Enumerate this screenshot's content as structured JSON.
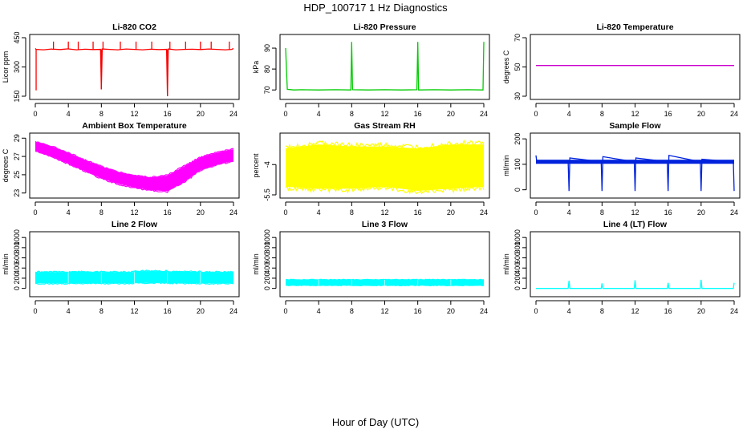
{
  "page": {
    "title": "HDP_100717  1 Hz Diagnostics",
    "xaxis_caption": "Hour of Day (UTC)"
  },
  "chart_data": [
    {
      "type": "line",
      "title": "Li-820 CO2",
      "ylabel": "Licor ppm",
      "color": "#ff0000",
      "x": [
        0,
        0.1,
        1,
        2,
        2.2,
        2.3,
        3,
        4,
        4.1,
        5,
        6,
        7,
        7.9,
        8.0,
        8.1,
        9,
        10,
        11,
        12,
        13,
        14,
        15,
        15.9,
        16.0,
        16.1,
        17,
        18,
        19,
        20,
        21,
        22,
        23,
        23.8,
        24
      ],
      "y": [
        395,
        390,
        388,
        392,
        390,
        391,
        389,
        393,
        392,
        388,
        391,
        389,
        390,
        185,
        392,
        390,
        388,
        392,
        390,
        388,
        391,
        389,
        390,
        150,
        392,
        388,
        390,
        391,
        389,
        392,
        390,
        388,
        390,
        395
      ],
      "spikes": [
        {
          "x": 0.1,
          "y": 180
        },
        {
          "x": 2.2,
          "y": 430
        },
        {
          "x": 4.0,
          "y": 430
        },
        {
          "x": 5.2,
          "y": 430
        },
        {
          "x": 7.0,
          "y": 430
        },
        {
          "x": 8.0,
          "y": 185
        },
        {
          "x": 8.2,
          "y": 430
        },
        {
          "x": 10.3,
          "y": 430
        },
        {
          "x": 12.2,
          "y": 430
        },
        {
          "x": 14.1,
          "y": 430
        },
        {
          "x": 16.0,
          "y": 150
        },
        {
          "x": 16.3,
          "y": 430
        },
        {
          "x": 18.2,
          "y": 430
        },
        {
          "x": 20.0,
          "y": 430
        },
        {
          "x": 21.3,
          "y": 430
        },
        {
          "x": 23.5,
          "y": 430
        }
      ],
      "xlim": [
        0,
        24
      ],
      "ylim": [
        150,
        450
      ],
      "xticks": [
        0,
        4,
        8,
        12,
        16,
        20,
        24
      ],
      "yticks": [
        150,
        300,
        450
      ]
    },
    {
      "type": "line",
      "title": "Li-820 Pressure",
      "ylabel": "kPa",
      "color": "#00cc00",
      "x": [
        0,
        0.1,
        0.2,
        1,
        2,
        4,
        6,
        7.9,
        8.0,
        8.1,
        10,
        12,
        14,
        15.9,
        16.0,
        16.1,
        18,
        20,
        22,
        23.9,
        24
      ],
      "y": [
        90,
        80,
        70.3,
        70.0,
        70.1,
        70.0,
        70.1,
        70.0,
        93,
        70.1,
        70.0,
        70.1,
        70.0,
        70.1,
        93,
        70.0,
        70.1,
        70.0,
        70.1,
        70.0,
        93
      ],
      "xlim": [
        0,
        24
      ],
      "ylim": [
        67,
        95
      ],
      "xticks": [
        0,
        4,
        8,
        12,
        16,
        20,
        24
      ],
      "yticks": [
        70,
        80,
        90
      ]
    },
    {
      "type": "line",
      "title": "Li-820 Temperature",
      "ylabel": "degrees C",
      "color": "#cc00cc",
      "x": [
        0,
        24
      ],
      "y": [
        51,
        51
      ],
      "xlim": [
        0,
        24
      ],
      "ylim": [
        30,
        70
      ],
      "xticks": [
        0,
        4,
        8,
        12,
        16,
        20,
        24
      ],
      "yticks": [
        30,
        50,
        70
      ]
    },
    {
      "type": "area",
      "title": "Ambient Box Temperature",
      "ylabel": "degrees C",
      "color": "#ff00ff",
      "x": [
        0,
        2,
        4,
        6,
        8,
        10,
        12,
        14,
        16,
        18,
        20,
        22,
        24
      ],
      "y_upper": [
        28.6,
        28.1,
        27.4,
        26.6,
        25.9,
        25.3,
        24.9,
        24.7,
        24.9,
        25.9,
        26.9,
        27.4,
        27.8
      ],
      "y_lower": [
        27.6,
        27.0,
        26.2,
        25.4,
        24.6,
        24.0,
        23.6,
        23.3,
        23.2,
        24.2,
        25.5,
        26.1,
        26.5
      ],
      "xlim": [
        0,
        24
      ],
      "ylim": [
        22.8,
        29.2
      ],
      "xticks": [
        0,
        4,
        8,
        12,
        16,
        20,
        24
      ],
      "yticks": [
        23,
        25,
        27,
        29
      ]
    },
    {
      "type": "area",
      "title": "Gas Stream RH",
      "ylabel": "percent",
      "color": "#ffff00",
      "x": [
        0,
        4,
        8,
        12,
        16,
        20,
        24
      ],
      "y_upper": [
        -3.2,
        -3.0,
        -3.1,
        -3.1,
        -3.2,
        -3.0,
        -3.0
      ],
      "y_lower": [
        -5.1,
        -5.2,
        -5.2,
        -5.1,
        -5.3,
        -5.2,
        -5.1
      ],
      "xlim": [
        0,
        24
      ],
      "ylim": [
        -5.5,
        -2.6
      ],
      "xticks": [
        0,
        4,
        8,
        12,
        16,
        20,
        24
      ],
      "yticks": [
        -5.5,
        -4.0
      ]
    },
    {
      "type": "line",
      "title": "Sample Flow",
      "ylabel": "ml/min",
      "color": "#0022dd",
      "x": [
        0,
        0.1,
        1,
        3.9,
        4.0,
        4.1,
        7.9,
        8.0,
        8.1,
        11.9,
        12.0,
        12.1,
        15.9,
        16.0,
        16.1,
        19.9,
        20.0,
        20.1,
        23.9,
        24
      ],
      "y": [
        135,
        110,
        110,
        110,
        -5,
        125,
        110,
        -5,
        130,
        110,
        -5,
        125,
        110,
        -5,
        135,
        110,
        -5,
        120,
        110,
        -5
      ],
      "band": {
        "upper": 118,
        "lower": 102
      },
      "xlim": [
        0,
        24
      ],
      "ylim": [
        -20,
        210
      ],
      "xticks": [
        0,
        4,
        8,
        12,
        16,
        20,
        24
      ],
      "yticks": [
        0,
        100,
        200
      ]
    },
    {
      "type": "area",
      "title": "Line 2 Flow",
      "ylabel": "ml/min",
      "color": "#00ffff",
      "x": [
        0,
        3.9,
        4.1,
        7.9,
        8.1,
        11.9,
        12.1,
        15.9,
        16.1,
        19.9,
        20.1,
        24
      ],
      "y_upper": [
        320,
        320,
        325,
        325,
        320,
        320,
        340,
        340,
        325,
        325,
        320,
        320
      ],
      "y_lower": [
        100,
        100,
        105,
        105,
        100,
        100,
        110,
        110,
        105,
        105,
        100,
        100
      ],
      "xlim": [
        0,
        24
      ],
      "ylim": [
        -100,
        1050
      ],
      "xticks": [
        0,
        4,
        8,
        12,
        16,
        20,
        24
      ],
      "yticks": [
        0,
        200,
        400,
        600,
        800,
        1000
      ]
    },
    {
      "type": "area",
      "title": "Line 3 Flow",
      "ylabel": "ml/min",
      "color": "#00ffff",
      "x": [
        0,
        4,
        8,
        12,
        16,
        20,
        24
      ],
      "y_upper": [
        170,
        170,
        170,
        170,
        170,
        170,
        170
      ],
      "y_lower": [
        60,
        60,
        60,
        60,
        60,
        60,
        60
      ],
      "xlim": [
        0,
        24
      ],
      "ylim": [
        -100,
        1050
      ],
      "xticks": [
        0,
        4,
        8,
        12,
        16,
        20,
        24
      ],
      "yticks": [
        0,
        200,
        400,
        600,
        800,
        1000
      ]
    },
    {
      "type": "line",
      "title": "Line 4 (LT) Flow",
      "ylabel": "ml/min",
      "color": "#00ffff",
      "x": [
        0,
        3.9,
        4.0,
        4.1,
        7.9,
        8.0,
        8.1,
        11.9,
        12.0,
        12.1,
        15.9,
        16.0,
        16.1,
        19.9,
        20.0,
        20.1,
        23.9,
        24.0
      ],
      "y": [
        0,
        0,
        150,
        0,
        0,
        100,
        0,
        0,
        160,
        0,
        0,
        110,
        0,
        0,
        170,
        0,
        0,
        110
      ],
      "xlim": [
        0,
        24
      ],
      "ylim": [
        -100,
        1050
      ],
      "xticks": [
        0,
        4,
        8,
        12,
        16,
        20,
        24
      ],
      "yticks": [
        0,
        200,
        400,
        600,
        800,
        1000
      ]
    }
  ]
}
